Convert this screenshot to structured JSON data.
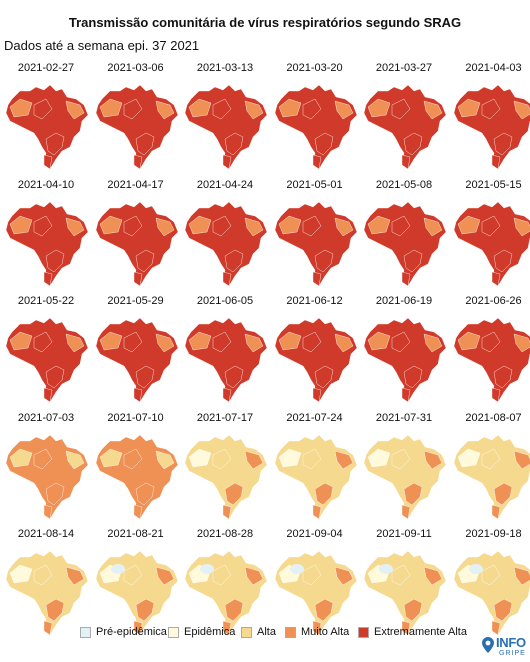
{
  "title": "Transmissão comunitária de vírus respiratórios segundo SRAG",
  "subtitle": "Dados até a semana epi. 37 2021",
  "legend": {
    "items": [
      {
        "label": "Pré-epidêmica",
        "color": "#e3f1f6"
      },
      {
        "label": "Epidêmica",
        "color": "#fffadc"
      },
      {
        "label": "Alta",
        "color": "#f5d98e"
      },
      {
        "label": "Muito Alta",
        "color": "#ef9055"
      },
      {
        "label": "Extremamente Alta",
        "color": "#cf3a2a"
      }
    ]
  },
  "logo": {
    "text": "INFO",
    "subtext": "GRIPE"
  },
  "maps": [
    {
      "date": "2021-02-27",
      "level": 4
    },
    {
      "date": "2021-03-06",
      "level": 4
    },
    {
      "date": "2021-03-13",
      "level": 4
    },
    {
      "date": "2021-03-20",
      "level": 4
    },
    {
      "date": "2021-03-27",
      "level": 4
    },
    {
      "date": "2021-04-03",
      "level": 4
    },
    {
      "date": "2021-04-10",
      "level": 4
    },
    {
      "date": "2021-04-17",
      "level": 4
    },
    {
      "date": "2021-04-24",
      "level": 4
    },
    {
      "date": "2021-05-01",
      "level": 4
    },
    {
      "date": "2021-05-08",
      "level": 4
    },
    {
      "date": "2021-05-15",
      "level": 4
    },
    {
      "date": "2021-05-22",
      "level": 4
    },
    {
      "date": "2021-05-29",
      "level": 4
    },
    {
      "date": "2021-06-05",
      "level": 4
    },
    {
      "date": "2021-06-12",
      "level": 4
    },
    {
      "date": "2021-06-19",
      "level": 4
    },
    {
      "date": "2021-06-26",
      "level": 4
    },
    {
      "date": "2021-07-03",
      "level": 3
    },
    {
      "date": "2021-07-10",
      "level": 3
    },
    {
      "date": "2021-07-17",
      "level": 2
    },
    {
      "date": "2021-07-24",
      "level": 2
    },
    {
      "date": "2021-07-31",
      "level": 2
    },
    {
      "date": "2021-08-07",
      "level": 2
    },
    {
      "date": "2021-08-14",
      "level": 2
    },
    {
      "date": "2021-08-21",
      "level": 2
    },
    {
      "date": "2021-08-28",
      "level": 2
    },
    {
      "date": "2021-09-04",
      "level": 2
    },
    {
      "date": "2021-09-11",
      "level": 2
    },
    {
      "date": "2021-09-18",
      "level": 2
    }
  ]
}
